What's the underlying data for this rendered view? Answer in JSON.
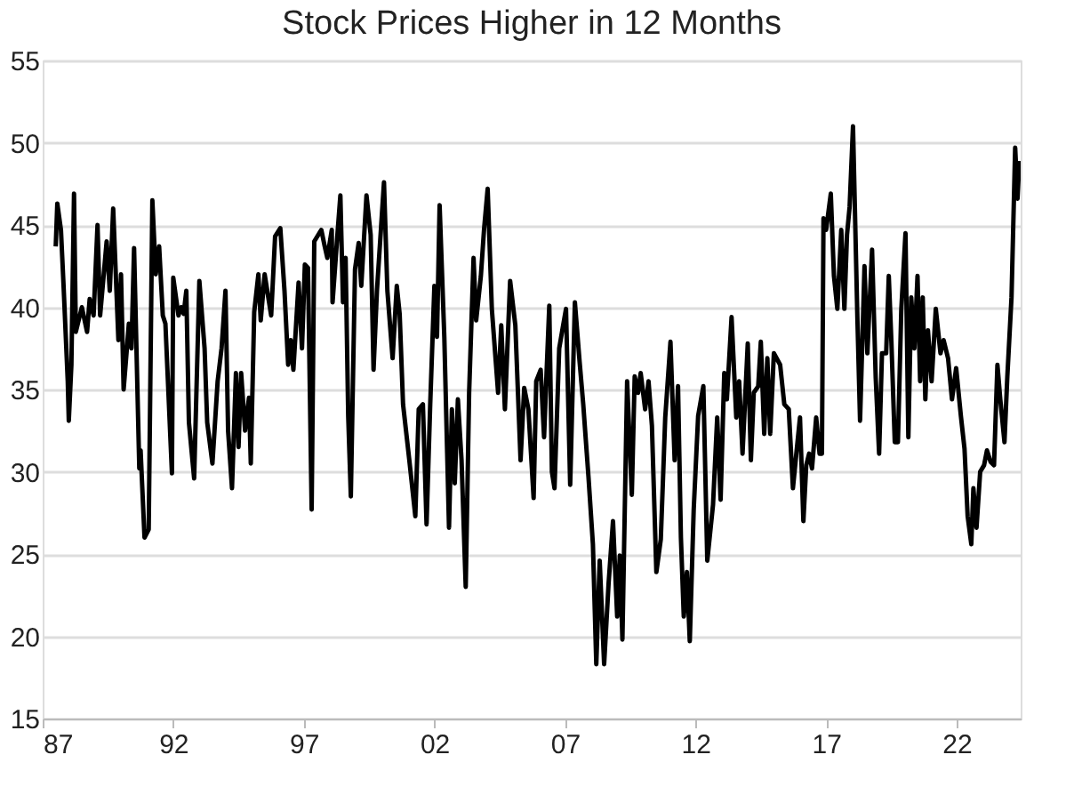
{
  "chart_data": {
    "type": "line",
    "title": "Stock Prices Higher in 12 Months",
    "x": [
      1987.5,
      1987.56,
      1987.7,
      1987.8,
      1987.96,
      1988.0,
      1988.1,
      1988.2,
      1988.27,
      1988.5,
      1988.7,
      1988.8,
      1988.95,
      1989.1,
      1989.2,
      1989.45,
      1989.57,
      1989.7,
      1989.9,
      1990.0,
      1990.1,
      1990.3,
      1990.4,
      1990.5,
      1990.7,
      1990.75,
      1990.9,
      1991.06,
      1991.2,
      1991.33,
      1991.46,
      1991.6,
      1991.7,
      1991.95,
      1992.0,
      1992.2,
      1992.3,
      1992.4,
      1992.5,
      1992.6,
      1992.8,
      1993.0,
      1993.2,
      1993.3,
      1993.5,
      1993.7,
      1993.85,
      1994.0,
      1994.1,
      1994.25,
      1994.4,
      1994.5,
      1994.6,
      1994.75,
      1994.9,
      1994.97,
      1995.1,
      1995.26,
      1995.35,
      1995.5,
      1995.75,
      1995.9,
      1996.1,
      1996.26,
      1996.4,
      1996.5,
      1996.6,
      1996.8,
      1996.93,
      1997.04,
      1997.16,
      1997.3,
      1997.4,
      1997.67,
      1997.8,
      1997.9,
      1998.07,
      1998.1,
      1998.3,
      1998.4,
      1998.5,
      1998.6,
      1998.7,
      1998.8,
      1998.96,
      1999.1,
      1999.2,
      1999.4,
      1999.56,
      1999.67,
      1999.8,
      2000.07,
      2000.2,
      2000.4,
      2000.56,
      2000.67,
      2000.8,
      2001.04,
      2001.27,
      2001.4,
      2001.56,
      2001.7,
      2001.84,
      2002.0,
      2002.1,
      2002.2,
      2002.38,
      2002.56,
      2002.67,
      2002.78,
      2002.9,
      2003.04,
      2003.2,
      2003.33,
      2003.5,
      2003.6,
      2003.78,
      2003.9,
      2004.04,
      2004.2,
      2004.44,
      2004.56,
      2004.7,
      2004.9,
      2005.1,
      2005.3,
      2005.44,
      2005.6,
      2005.8,
      2005.9,
      2006.07,
      2006.2,
      2006.3,
      2006.4,
      2006.5,
      2006.6,
      2006.78,
      2006.93,
      2007.04,
      2007.2,
      2007.38,
      2007.56,
      2007.7,
      2007.9,
      2008.07,
      2008.2,
      2008.33,
      2008.5,
      2008.67,
      2008.84,
      2009.0,
      2009.1,
      2009.2,
      2009.38,
      2009.56,
      2009.67,
      2009.8,
      2009.9,
      2010.07,
      2010.2,
      2010.33,
      2010.5,
      2010.67,
      2010.84,
      2011.04,
      2011.2,
      2011.33,
      2011.44,
      2011.55,
      2011.67,
      2011.78,
      2011.93,
      2012.1,
      2012.3,
      2012.45,
      2012.67,
      2012.83,
      2012.96,
      2013.1,
      2013.2,
      2013.38,
      2013.56,
      2013.67,
      2013.8,
      2014.0,
      2014.12,
      2014.23,
      2014.4,
      2014.5,
      2014.63,
      2014.75,
      2014.86,
      2015.0,
      2015.24,
      2015.4,
      2015.57,
      2015.73,
      2015.86,
      2016.0,
      2016.13,
      2016.24,
      2016.35,
      2016.46,
      2016.62,
      2016.75,
      2016.84,
      2016.9,
      2017.0,
      2017.18,
      2017.3,
      2017.43,
      2017.58,
      2017.7,
      2017.8,
      2017.9,
      2018.03,
      2018.2,
      2018.3,
      2018.47,
      2018.58,
      2018.76,
      2018.9,
      2019.03,
      2019.14,
      2019.3,
      2019.4,
      2019.5,
      2019.63,
      2019.75,
      2019.88,
      2020.04,
      2020.15,
      2020.26,
      2020.38,
      2020.5,
      2020.6,
      2020.7,
      2020.8,
      2020.9,
      2021.04,
      2021.2,
      2021.38,
      2021.5,
      2021.67,
      2021.82,
      2021.98,
      2022.16,
      2022.3,
      2022.42,
      2022.56,
      2022.64,
      2022.76,
      2022.9,
      2023.05,
      2023.16,
      2023.3,
      2023.43,
      2023.56,
      2023.67,
      2023.83,
      2023.94,
      2024.1,
      2024.24,
      2024.33,
      2024.4
    ],
    "series": [
      {
        "color": "#000000",
        "values": [
          43.7,
          46.3,
          44.7,
          41.3,
          35.5,
          33.1,
          36.5,
          46.9,
          38.5,
          40,
          38.5,
          40.5,
          39.5,
          45,
          39.5,
          44,
          41,
          46,
          38,
          42,
          35,
          39,
          37.5,
          43.6,
          30.2,
          31.3,
          26,
          26.5,
          46.5,
          42,
          43.7,
          39.5,
          39,
          29.9,
          41.8,
          39.5,
          40,
          39.6,
          41,
          33,
          29.6,
          41.6,
          37.5,
          33,
          30.5,
          35.5,
          37.5,
          41,
          32.5,
          29,
          36,
          31.5,
          36,
          32.5,
          34.5,
          30.5,
          39.7,
          42,
          39.2,
          42,
          39.5,
          44.3,
          44.8,
          41,
          36.5,
          38,
          36.2,
          41.5,
          37.5,
          42.6,
          42.4,
          27.7,
          44,
          44.7,
          43.7,
          43,
          44.7,
          40.3,
          44.7,
          46.8,
          40.3,
          43,
          33.4,
          28.5,
          42.3,
          43.9,
          41.3,
          46.8,
          44.4,
          36.2,
          41,
          47.6,
          41,
          36.9,
          41.3,
          39.6,
          34.1,
          30.7,
          27.3,
          33.8,
          34.1,
          26.8,
          34.1,
          41.3,
          38.2,
          46.2,
          38.2,
          26.6,
          33.8,
          29.3,
          34.4,
          30.7,
          23,
          34.8,
          43,
          39.2,
          41.9,
          44.7,
          47.2,
          39.9,
          34.8,
          38.9,
          33.8,
          41.6,
          38.9,
          30.7,
          35.1,
          33.8,
          28.4,
          35.5,
          36.2,
          32.1,
          36.2,
          40.1,
          30,
          29,
          37.5,
          38.9,
          39.9,
          29.2,
          40.3,
          36.7,
          34.1,
          29.7,
          25.6,
          18.3,
          24.6,
          18.3,
          23.2,
          27,
          21.2,
          24.9,
          19.8,
          35.5,
          28.6,
          35.8,
          34.8,
          36,
          33.8,
          35.5,
          32.8,
          23.9,
          25.9,
          33.3,
          37.9,
          30.7,
          35.2,
          26,
          21.2,
          23.9,
          19.7,
          27.7,
          33.4,
          35.2,
          24.6,
          28,
          33.3,
          28.3,
          36,
          34.4,
          39.4,
          33.3,
          35.5,
          31.1,
          37.8,
          30.7,
          34.8,
          35.2,
          37.9,
          32.3,
          36.9,
          32.3,
          37.2,
          36.5,
          34.1,
          33.8,
          29,
          31.1,
          33.3,
          27,
          30.4,
          31.1,
          30.2,
          33.3,
          31.1,
          31.1,
          45.4,
          44.7,
          46.9,
          41.9,
          39.9,
          44.7,
          39.9,
          44.4,
          46.1,
          51,
          39.2,
          33.1,
          42.5,
          37.2,
          43.5,
          35.7,
          31.1,
          37.2,
          37.2,
          41.9,
          37.9,
          31.8,
          31.8,
          39.9,
          44.5,
          32.1,
          40.6,
          37.5,
          41.9,
          35.5,
          40.6,
          34.4,
          38.6,
          35.5,
          39.9,
          37.2,
          38,
          36.9,
          34.4,
          36.3,
          33.4,
          31.4,
          27.3,
          25.6,
          29,
          26.6,
          30,
          30.4,
          31.3,
          30.6,
          30.4,
          36.5,
          34.4,
          31.8,
          35.8,
          40.6,
          49.7,
          46.6,
          48.9
        ]
      }
    ],
    "xlim": [
      1987,
      2024.45
    ],
    "xticks": [
      {
        "value": 1987,
        "label": "87"
      },
      {
        "value": 1992,
        "label": "92"
      },
      {
        "value": 1997,
        "label": "97"
      },
      {
        "value": 2002,
        "label": "02"
      },
      {
        "value": 2007,
        "label": "07"
      },
      {
        "value": 2012,
        "label": "12"
      },
      {
        "value": 2017,
        "label": "17"
      },
      {
        "value": 2022,
        "label": "22"
      }
    ],
    "ylim": [
      15,
      55
    ],
    "yticks": [
      15,
      20,
      25,
      30,
      35,
      40,
      45,
      50,
      55
    ],
    "grid": "y",
    "line_style": "solid",
    "marker": "none"
  }
}
